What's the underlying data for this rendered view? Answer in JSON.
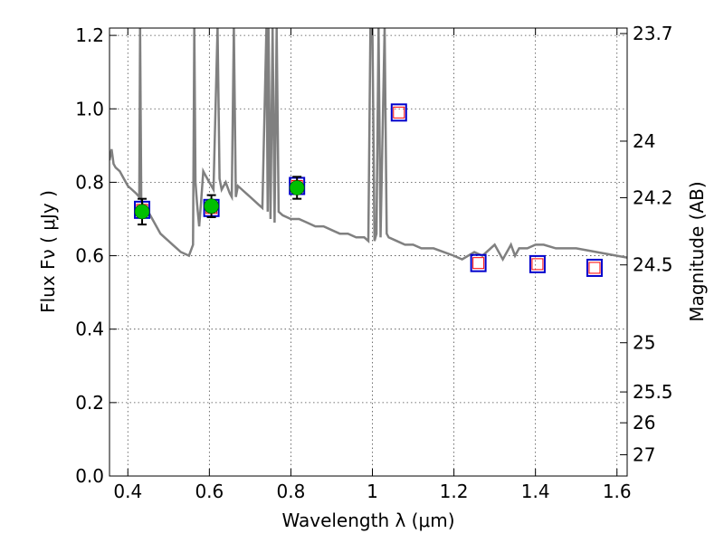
{
  "chart_data": {
    "type": "scatter",
    "xlabel": "Wavelength  λ (μm)",
    "ylabel": "Flux  Fν  ( μJy )",
    "y2label": "Magnitude (AB)",
    "xlim": [
      0.355,
      1.625
    ],
    "ylim": [
      0.0,
      1.22
    ],
    "grid": true,
    "x_ticks": [
      0.4,
      0.6,
      0.8,
      1.0,
      1.2,
      1.4,
      1.6
    ],
    "x_tick_labels": [
      "0.4",
      "0.6",
      "0.8",
      "1",
      "1.2",
      "1.4",
      "1.6"
    ],
    "y_ticks": [
      0.0,
      0.2,
      0.4,
      0.6,
      0.8,
      1.0,
      1.2
    ],
    "y_tick_labels": [
      "0.0",
      "0.2",
      "0.4",
      "0.6",
      "0.8",
      "1.0",
      "1.2"
    ],
    "y2_ticks": [
      {
        "label": "23.7",
        "flux": 1.205
      },
      {
        "label": "24",
        "flux": 0.912
      },
      {
        "label": "24.2",
        "flux": 0.758
      },
      {
        "label": "24.5",
        "flux": 0.575
      },
      {
        "label": "25",
        "flux": 0.363
      },
      {
        "label": "25.5",
        "flux": 0.229
      },
      {
        "label": "26",
        "flux": 0.145
      },
      {
        "label": "27",
        "flux": 0.058
      }
    ],
    "colors": {
      "model": "#808080",
      "observed_fill": "#00c000",
      "synthetic_outer": "#0000cc",
      "synthetic_inner": "#ff0000",
      "errorbar": "#000000"
    },
    "series": [
      {
        "kind": "model_spectrum",
        "x": [
          0.355,
          0.36,
          0.365,
          0.37,
          0.38,
          0.39,
          0.4,
          0.41,
          0.42,
          0.428,
          0.43,
          0.433,
          0.44,
          0.45,
          0.46,
          0.47,
          0.48,
          0.49,
          0.5,
          0.51,
          0.52,
          0.53,
          0.54,
          0.55,
          0.56,
          0.563,
          0.566,
          0.57,
          0.575,
          0.58,
          0.585,
          0.59,
          0.6,
          0.61,
          0.62,
          0.625,
          0.63,
          0.64,
          0.65,
          0.655,
          0.66,
          0.665,
          0.67,
          0.68,
          0.69,
          0.7,
          0.71,
          0.72,
          0.73,
          0.74,
          0.743,
          0.745,
          0.75,
          0.755,
          0.76,
          0.765,
          0.77,
          0.78,
          0.8,
          0.82,
          0.84,
          0.86,
          0.88,
          0.9,
          0.92,
          0.94,
          0.96,
          0.98,
          0.99,
          0.995,
          1.0,
          1.005,
          1.01,
          1.015,
          1.02,
          1.03,
          1.035,
          1.04,
          1.06,
          1.08,
          1.1,
          1.12,
          1.15,
          1.2,
          1.22,
          1.25,
          1.27,
          1.3,
          1.32,
          1.34,
          1.35,
          1.36,
          1.38,
          1.4,
          1.42,
          1.45,
          1.5,
          1.55,
          1.6,
          1.625
        ],
        "y": [
          0.86,
          0.89,
          0.85,
          0.84,
          0.83,
          0.81,
          0.79,
          0.78,
          0.77,
          0.76,
          1.22,
          0.75,
          0.73,
          0.72,
          0.7,
          0.68,
          0.66,
          0.65,
          0.64,
          0.63,
          0.62,
          0.61,
          0.605,
          0.6,
          0.63,
          1.22,
          0.8,
          0.74,
          0.68,
          0.75,
          0.83,
          0.82,
          0.8,
          0.78,
          1.22,
          0.81,
          0.78,
          0.8,
          0.77,
          0.76,
          1.22,
          0.76,
          0.79,
          0.78,
          0.77,
          0.76,
          0.75,
          0.74,
          0.73,
          1.22,
          0.72,
          1.22,
          0.7,
          1.22,
          0.69,
          1.22,
          0.72,
          0.71,
          0.7,
          0.7,
          0.69,
          0.68,
          0.68,
          0.67,
          0.66,
          0.66,
          0.65,
          0.65,
          0.64,
          1.22,
          1.22,
          0.64,
          0.66,
          1.22,
          0.65,
          1.22,
          0.66,
          0.65,
          0.64,
          0.63,
          0.63,
          0.62,
          0.62,
          0.6,
          0.59,
          0.61,
          0.6,
          0.63,
          0.59,
          0.63,
          0.6,
          0.62,
          0.62,
          0.63,
          0.63,
          0.62,
          0.62,
          0.61,
          0.6,
          0.595
        ]
      },
      {
        "kind": "observed_points",
        "x": [
          0.435,
          0.605,
          0.815
        ],
        "y": [
          0.72,
          0.735,
          0.785
        ],
        "yerr": [
          0.035,
          0.03,
          0.03
        ]
      },
      {
        "kind": "synthetic_points",
        "x": [
          0.435,
          0.605,
          0.815,
          1.065,
          1.26,
          1.405,
          1.545
        ],
        "y": [
          0.725,
          0.73,
          0.79,
          0.99,
          0.58,
          0.577,
          0.567
        ]
      }
    ]
  }
}
